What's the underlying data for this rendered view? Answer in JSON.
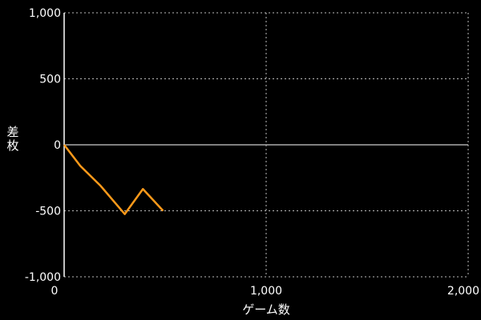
{
  "chart_data": {
    "type": "line",
    "title": "",
    "xlabel": "ゲーム数",
    "ylabel": "差枚",
    "xlim": [
      0,
      2000
    ],
    "ylim": [
      -1000,
      1000
    ],
    "x_ticks": [
      0,
      1000,
      2000
    ],
    "x_tick_labels": [
      "0",
      "1,000",
      "2,000"
    ],
    "y_ticks": [
      1000,
      500,
      0,
      -500,
      -1000
    ],
    "y_tick_labels": [
      "1,000",
      "500",
      "0",
      "-500",
      "-1,000"
    ],
    "grid": true,
    "series": [
      {
        "color": "#ff9a1a",
        "x": [
          0,
          80,
          180,
          300,
          390,
          490
        ],
        "y": [
          0,
          -160,
          -310,
          -525,
          -335,
          -500
        ]
      }
    ],
    "colors": {
      "background": "#000000",
      "grid": "#bbbbbb",
      "axis": "#ffffff",
      "text": "#ffffff",
      "line": "#ff9a1a"
    }
  }
}
